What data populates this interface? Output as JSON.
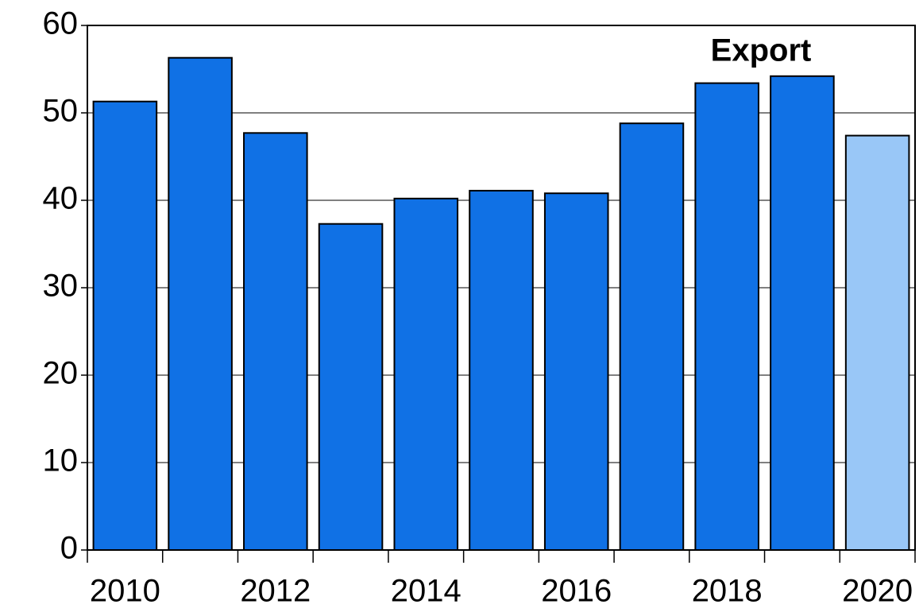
{
  "chart_data": {
    "type": "bar",
    "annotation": "Export",
    "categories": [
      "2010",
      null,
      "2012",
      null,
      "2014",
      null,
      "2016",
      null,
      "2018",
      null,
      "2020"
    ],
    "values": [
      51.3,
      56.3,
      47.7,
      37.3,
      40.2,
      41.1,
      40.8,
      48.8,
      53.4,
      54.2,
      47.4
    ],
    "colors": [
      "#1071e5",
      "#1071e5",
      "#1071e5",
      "#1071e5",
      "#1071e5",
      "#1071e5",
      "#1071e5",
      "#1071e5",
      "#1071e5",
      "#1071e5",
      "#99c7f7"
    ],
    "ylim": [
      0,
      60
    ],
    "yticks": [
      0,
      10,
      20,
      30,
      40,
      50,
      60
    ],
    "grid": true
  }
}
